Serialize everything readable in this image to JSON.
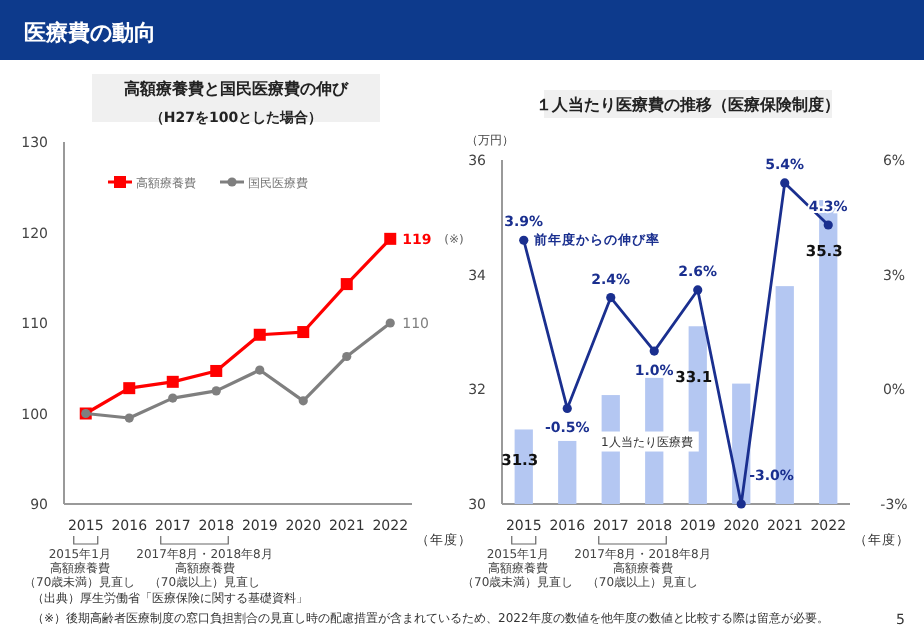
{
  "chart_data": [
    {
      "type": "line",
      "title": "高額療養費と国民医療費の伸び",
      "subtitle": "（H27を100とした場合）",
      "xlabel": "（年度）",
      "categories": [
        "2015",
        "2016",
        "2017",
        "2018",
        "2019",
        "2020",
        "2021",
        "2022"
      ],
      "series": [
        {
          "name": "高額療養費",
          "color": "#ff0000",
          "marker": "square",
          "values": [
            100,
            102.8,
            103.5,
            104.7,
            108.7,
            109,
            114.3,
            119.3
          ],
          "value_labels": [
            null,
            null,
            null,
            null,
            null,
            null,
            null,
            "119"
          ]
        },
        {
          "name": "国民医療費",
          "color": "#7f7f7f",
          "marker": "circle",
          "values": [
            100,
            99.5,
            101.7,
            102.5,
            104.8,
            101.4,
            106.3,
            110
          ],
          "value_labels": [
            null,
            null,
            null,
            null,
            null,
            null,
            null,
            "110"
          ]
        }
      ],
      "ylim": [
        90,
        130
      ],
      "yticks": [
        90,
        100,
        110,
        120,
        130
      ],
      "legend": "top left",
      "annotations": [
        "医療費の動向",
        "2015年1月",
        "高額療養費",
        "（70歳未満）見直し",
        "2017年8月・2018年8月",
        "高額療養費",
        "（70歳以上）見直し",
        "（出典）厚生労働省「医療保険に関する基礎資料」",
        "（※）後期高齢者医療制度の窓口負担割合の見直し時の配慮措置が含まれているため、2022年度の数値を他年度の数値と比較する際は留意が必要。",
        "(※)"
      ]
    },
    {
      "type": "bar",
      "title": "１人当たり医療費の推移（医療保険制度）",
      "xlabel": "（年度）",
      "ylabel": "（万円）",
      "categories": [
        "2015",
        "2016",
        "2017",
        "2018",
        "2019",
        "2020",
        "2021",
        "2022"
      ],
      "series": [
        {
          "name": "1人当たり医療費",
          "color": "#b4c7f2",
          "values": [
            31.3,
            31.1,
            31.9,
            32.2,
            33.1,
            32.1,
            33.8,
            35.3
          ],
          "value_labels": [
            "31.3",
            null,
            null,
            null,
            "33.1",
            null,
            null,
            "35.3"
          ]
        },
        {
          "name": "前年度からの伸び率",
          "type": "line",
          "axis": "y2",
          "color": "#1a2f8f",
          "marker": "circle",
          "values": [
            3.9,
            -0.5,
            2.4,
            1.0,
            2.6,
            -3.0,
            5.4,
            4.3
          ],
          "value_labels": [
            "3.9%",
            "-0.5%",
            "2.4%",
            "1.0%",
            "2.6%",
            "-3.0%",
            "5.4%",
            "4.3%"
          ]
        }
      ],
      "ylim": [
        30,
        36
      ],
      "yticks": [
        30,
        32,
        34,
        36
      ],
      "y2lim": [
        -3,
        6
      ],
      "y2ticks": [
        {
          "value": -3,
          "label": "-3%"
        },
        {
          "value": 0,
          "label": "0%"
        },
        {
          "value": 3,
          "label": "3%"
        },
        {
          "value": 6,
          "label": "6%"
        }
      ],
      "annotations": [
        "2015年1月",
        "高額療養費",
        "（70歳未満）見直し",
        "2017年8月・2018年8月",
        "高額療養費",
        "（70歳以上）見直し",
        "5"
      ]
    }
  ]
}
